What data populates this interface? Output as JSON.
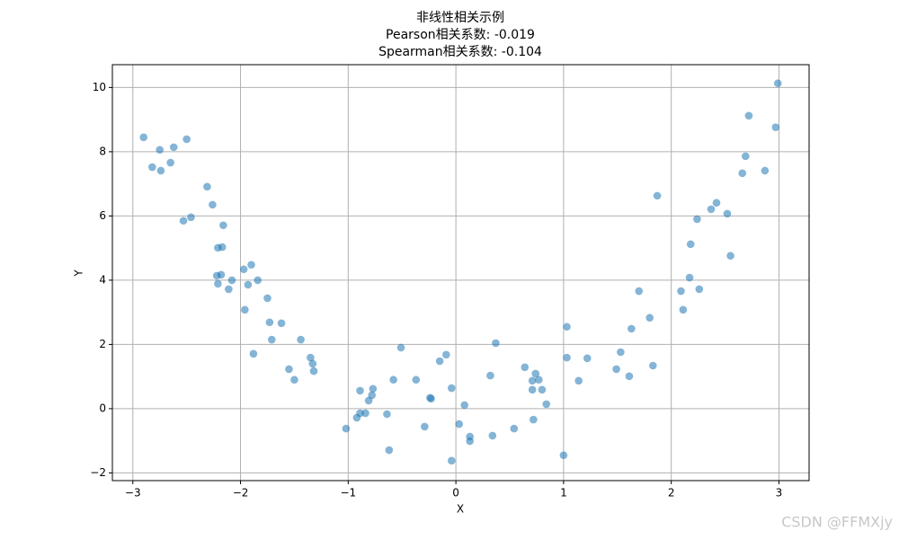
{
  "chart_data": {
    "type": "scatter",
    "title": "非线性相关示例",
    "subtitle": [
      "Pearson相关系数: -0.019",
      "Spearman相关系数: -0.104"
    ],
    "xlabel": "X",
    "ylabel": "Y",
    "color": "#1f77b4",
    "alpha": 0.55,
    "grid": true,
    "xlim": [
      -3.19,
      3.28
    ],
    "ylim": [
      -2.24,
      10.71
    ],
    "xticks": [
      {
        "value": -3,
        "label": "−3"
      },
      {
        "value": -2,
        "label": "−2"
      },
      {
        "value": -1,
        "label": "−1"
      },
      0,
      1,
      2,
      3
    ],
    "yticks": [
      {
        "value": -2,
        "label": "−2"
      },
      0,
      2,
      4,
      6,
      8,
      10
    ],
    "x": [
      -2.9,
      -2.82,
      -2.75,
      -2.74,
      -2.65,
      -2.62,
      -2.5,
      -2.53,
      -2.46,
      -2.31,
      -2.26,
      -2.16,
      -2.21,
      -2.17,
      -2.22,
      -2.18,
      -2.21,
      -2.08,
      -2.11,
      -1.97,
      -1.9,
      -1.93,
      -1.84,
      -1.96,
      -1.75,
      -1.73,
      -1.62,
      -1.71,
      -1.88,
      -1.44,
      -1.35,
      -1.33,
      -1.32,
      -1.55,
      -1.5,
      -1.02,
      -0.92,
      -0.89,
      -0.84,
      -0.89,
      -0.81,
      -0.78,
      -0.77,
      -0.64,
      -0.62,
      -0.58,
      -0.51,
      -0.37,
      -0.29,
      -0.24,
      -0.23,
      -0.15,
      -0.09,
      -0.04,
      -0.04,
      0.03,
      0.08,
      0.13,
      0.13,
      0.32,
      0.34,
      0.37,
      0.54,
      0.64,
      0.72,
      0.71,
      0.71,
      0.74,
      0.77,
      0.8,
      0.84,
      1.0,
      1.03,
      1.03,
      1.14,
      1.22,
      1.49,
      1.53,
      1.61,
      1.63,
      1.7,
      1.8,
      1.83,
      1.87,
      2.09,
      2.11,
      2.17,
      2.18,
      2.24,
      2.26,
      2.37,
      2.42,
      2.52,
      2.55,
      2.66,
      2.69,
      2.72,
      2.87,
      2.97,
      2.99
    ],
    "y": [
      8.45,
      7.52,
      8.06,
      7.41,
      7.66,
      8.14,
      8.39,
      5.85,
      5.96,
      6.91,
      6.35,
      5.71,
      5.01,
      5.03,
      4.14,
      4.17,
      3.89,
      4.0,
      3.72,
      4.34,
      4.48,
      3.86,
      4.0,
      3.08,
      3.44,
      2.69,
      2.66,
      2.15,
      1.71,
      2.15,
      1.59,
      1.4,
      1.17,
      1.23,
      0.9,
      -0.62,
      -0.28,
      -0.14,
      -0.14,
      0.56,
      0.25,
      0.42,
      0.62,
      -0.17,
      -1.29,
      0.9,
      1.9,
      0.9,
      -0.56,
      0.34,
      0.31,
      1.48,
      1.68,
      0.64,
      -1.62,
      -0.48,
      0.11,
      -0.87,
      -1.01,
      1.03,
      -0.84,
      2.04,
      -0.62,
      1.29,
      -0.34,
      0.87,
      0.59,
      1.09,
      0.9,
      0.59,
      0.14,
      -1.45,
      2.55,
      1.59,
      0.87,
      1.57,
      1.23,
      1.76,
      1.01,
      2.49,
      3.66,
      2.83,
      1.34,
      6.63,
      3.66,
      3.08,
      4.08,
      5.12,
      5.9,
      3.72,
      6.21,
      6.41,
      6.07,
      4.76,
      7.33,
      7.86,
      9.12,
      7.41,
      8.76,
      10.13
    ]
  },
  "watermark": "CSDN @FFMXjy"
}
